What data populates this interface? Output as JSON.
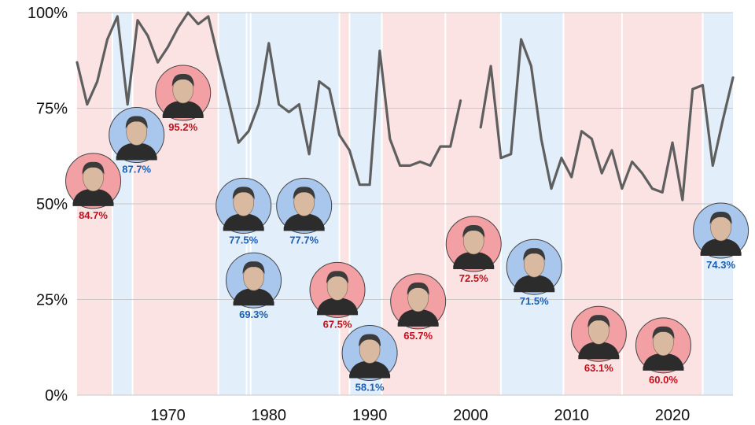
{
  "chart_data": {
    "type": "line",
    "title": "",
    "xlabel": "",
    "ylabel": "",
    "xlim": [
      1961,
      2026
    ],
    "ylim": [
      0,
      100
    ],
    "x_ticks": [
      1970,
      1980,
      1990,
      2000,
      2010,
      2020
    ],
    "x_tick_labels": [
      "1970",
      "1980",
      "1990",
      "2000",
      "2010",
      "2020"
    ],
    "y_ticks": [
      0,
      25,
      50,
      75,
      100
    ],
    "y_tick_labels": [
      "0%",
      "25%",
      "50%",
      "75%",
      "100%"
    ],
    "grid": true,
    "colors": {
      "republican_band": "#fbe3e4",
      "democrat_band": "#e2eef9",
      "line": "#5f5f5f",
      "republican_text": "#c0101a",
      "democrat_text": "#1a5fb4",
      "republican_circle": "#f2a0a3",
      "democrat_circle": "#a9c7ec"
    },
    "party_periods": [
      {
        "start": 1961,
        "end": 1964.5,
        "party": "R"
      },
      {
        "start": 1964.5,
        "end": 1966.5,
        "party": "D"
      },
      {
        "start": 1966.5,
        "end": 1975.0,
        "party": "R"
      },
      {
        "start": 1975.0,
        "end": 1977.8,
        "party": "D"
      },
      {
        "start": 1977.8,
        "end": 1978.2,
        "party": "D"
      },
      {
        "start": 1978.2,
        "end": 1987.0,
        "party": "D"
      },
      {
        "start": 1987.0,
        "end": 1988.0,
        "party": "R"
      },
      {
        "start": 1988.0,
        "end": 1991.2,
        "party": "D"
      },
      {
        "start": 1991.2,
        "end": 1997.5,
        "party": "R"
      },
      {
        "start": 1997.5,
        "end": 2003.0,
        "party": "R"
      },
      {
        "start": 2003.0,
        "end": 2009.2,
        "party": "D"
      },
      {
        "start": 2009.2,
        "end": 2015.0,
        "party": "R"
      },
      {
        "start": 2015.0,
        "end": 2023.0,
        "party": "R"
      },
      {
        "start": 2023.0,
        "end": 2026.0,
        "party": "D"
      }
    ],
    "series": [
      {
        "values": [
          [
            1961,
            87
          ],
          [
            1962,
            76
          ],
          [
            1963,
            82
          ],
          [
            1964,
            93
          ],
          [
            1965,
            99
          ],
          [
            1966,
            76
          ],
          [
            1967,
            98
          ],
          [
            1968,
            94
          ],
          [
            1969,
            87
          ],
          [
            1970,
            91
          ],
          [
            1971,
            96
          ],
          [
            1972,
            100
          ],
          [
            1973,
            97
          ],
          [
            1974,
            99
          ],
          [
            1975,
            88
          ],
          [
            1976,
            77
          ],
          [
            1977,
            66
          ],
          [
            1978,
            69
          ],
          [
            1979,
            76
          ],
          [
            1980,
            92
          ],
          [
            1981,
            76
          ],
          [
            1982,
            74
          ],
          [
            1983,
            76
          ],
          [
            1984,
            63
          ],
          [
            1985,
            82
          ],
          [
            1986,
            80
          ],
          [
            1987,
            68
          ],
          [
            1988,
            64
          ],
          [
            1989,
            55
          ],
          [
            1990,
            55
          ],
          [
            1991,
            90
          ],
          [
            1992,
            67
          ],
          [
            1993,
            60
          ],
          [
            1994,
            60
          ],
          [
            1995,
            61
          ],
          [
            1996,
            60
          ],
          [
            1997,
            65
          ],
          [
            1998,
            65
          ],
          [
            1999,
            77
          ],
          null,
          [
            2001,
            70
          ],
          [
            2002,
            86
          ],
          [
            2003,
            62
          ],
          [
            2004,
            63
          ],
          [
            2005,
            93
          ],
          [
            2006,
            86
          ],
          [
            2007,
            67
          ],
          [
            2008,
            54
          ],
          [
            2009,
            62
          ],
          [
            2010,
            57
          ],
          [
            2011,
            69
          ],
          [
            2012,
            67
          ],
          [
            2013,
            58
          ],
          [
            2014,
            64
          ],
          [
            2015,
            54
          ],
          [
            2016,
            61
          ],
          [
            2017,
            58
          ],
          [
            2018,
            54
          ],
          [
            2019,
            53
          ],
          [
            2020,
            66
          ],
          [
            2021,
            51
          ],
          [
            2022,
            80
          ],
          [
            2023,
            81
          ],
          [
            2024,
            60
          ],
          [
            2025,
            72
          ],
          [
            2026,
            83
          ]
        ]
      }
    ],
    "governors": [
      {
        "x": 1962.6,
        "y": 56.0,
        "label": "84.7%",
        "party": "R",
        "label_side": "below"
      },
      {
        "x": 1966.9,
        "y": 68.0,
        "label": "87.7%",
        "party": "D",
        "label_side": "below"
      },
      {
        "x": 1971.5,
        "y": 79.0,
        "label": "95.2%",
        "party": "R",
        "label_side": "below"
      },
      {
        "x": 1977.5,
        "y": 49.5,
        "label": "77.5%",
        "party": "D",
        "label_side": "below"
      },
      {
        "x": 1983.5,
        "y": 49.5,
        "label": "77.7%",
        "party": "D",
        "label_side": "below"
      },
      {
        "x": 1978.5,
        "y": 30.0,
        "label": "69.3%",
        "party": "D",
        "label_side": "below"
      },
      {
        "x": 1986.8,
        "y": 27.5,
        "label": "67.5%",
        "party": "R",
        "label_side": "below"
      },
      {
        "x": 1990.0,
        "y": 11.0,
        "label": "58.1%",
        "party": "D",
        "label_side": "below"
      },
      {
        "x": 1994.8,
        "y": 24.5,
        "label": "65.7%",
        "party": "R",
        "label_side": "below"
      },
      {
        "x": 2000.3,
        "y": 39.5,
        "label": "72.5%",
        "party": "R",
        "label_side": "below"
      },
      {
        "x": 2006.3,
        "y": 33.5,
        "label": "71.5%",
        "party": "D",
        "label_side": "below"
      },
      {
        "x": 2012.7,
        "y": 16.0,
        "label": "63.1%",
        "party": "R",
        "label_side": "below"
      },
      {
        "x": 2019.1,
        "y": 13.0,
        "label": "60.0%",
        "party": "R",
        "label_side": "below"
      },
      {
        "x": 2024.8,
        "y": 43.0,
        "label": "74.3%",
        "party": "D",
        "label_side": "below"
      }
    ]
  }
}
